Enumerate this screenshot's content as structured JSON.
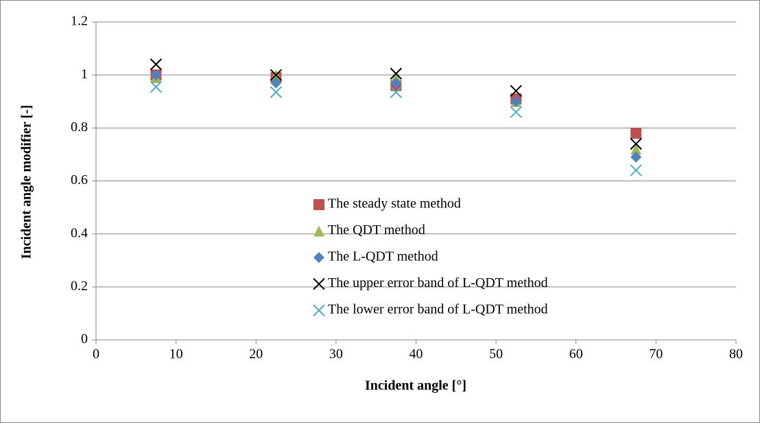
{
  "chart_data": {
    "type": "scatter",
    "x": [
      7.5,
      22.5,
      37.5,
      52.5,
      67.5
    ],
    "xlabel": "Incident angle [°]",
    "ylabel": "Incident angle modifier [-]",
    "xlim": [
      0,
      80
    ],
    "xticks": [
      0,
      10,
      20,
      30,
      40,
      50,
      60,
      70,
      80
    ],
    "ylim": [
      0,
      1.2
    ],
    "yticks": [
      0,
      0.2,
      0.4,
      0.6,
      0.8,
      1,
      1.2
    ],
    "grid": true,
    "legend": "center",
    "series": [
      {
        "name": "The steady state method",
        "color": "#c0504d",
        "marker": "square",
        "values": [
          1.0,
          0.99,
          0.96,
          0.91,
          0.78
        ]
      },
      {
        "name": "The QDT method",
        "color": "#9bbb59",
        "marker": "triangle",
        "values": [
          0.99,
          1.0,
          0.99,
          0.9,
          0.72
        ]
      },
      {
        "name": "The L-QDT method",
        "color": "#4f81bd",
        "marker": "diamond",
        "values": [
          1.0,
          0.97,
          0.97,
          0.9,
          0.69
        ]
      },
      {
        "name": "The upper error band of L-QDT method",
        "color": "#000000",
        "marker": "x",
        "values": [
          1.04,
          1.0,
          1.005,
          0.94,
          0.74
        ]
      },
      {
        "name": "The lower error band of L-QDT method",
        "color": "#4bacc6",
        "marker": "x",
        "values": [
          0.955,
          0.935,
          0.935,
          0.86,
          0.64
        ]
      }
    ]
  }
}
